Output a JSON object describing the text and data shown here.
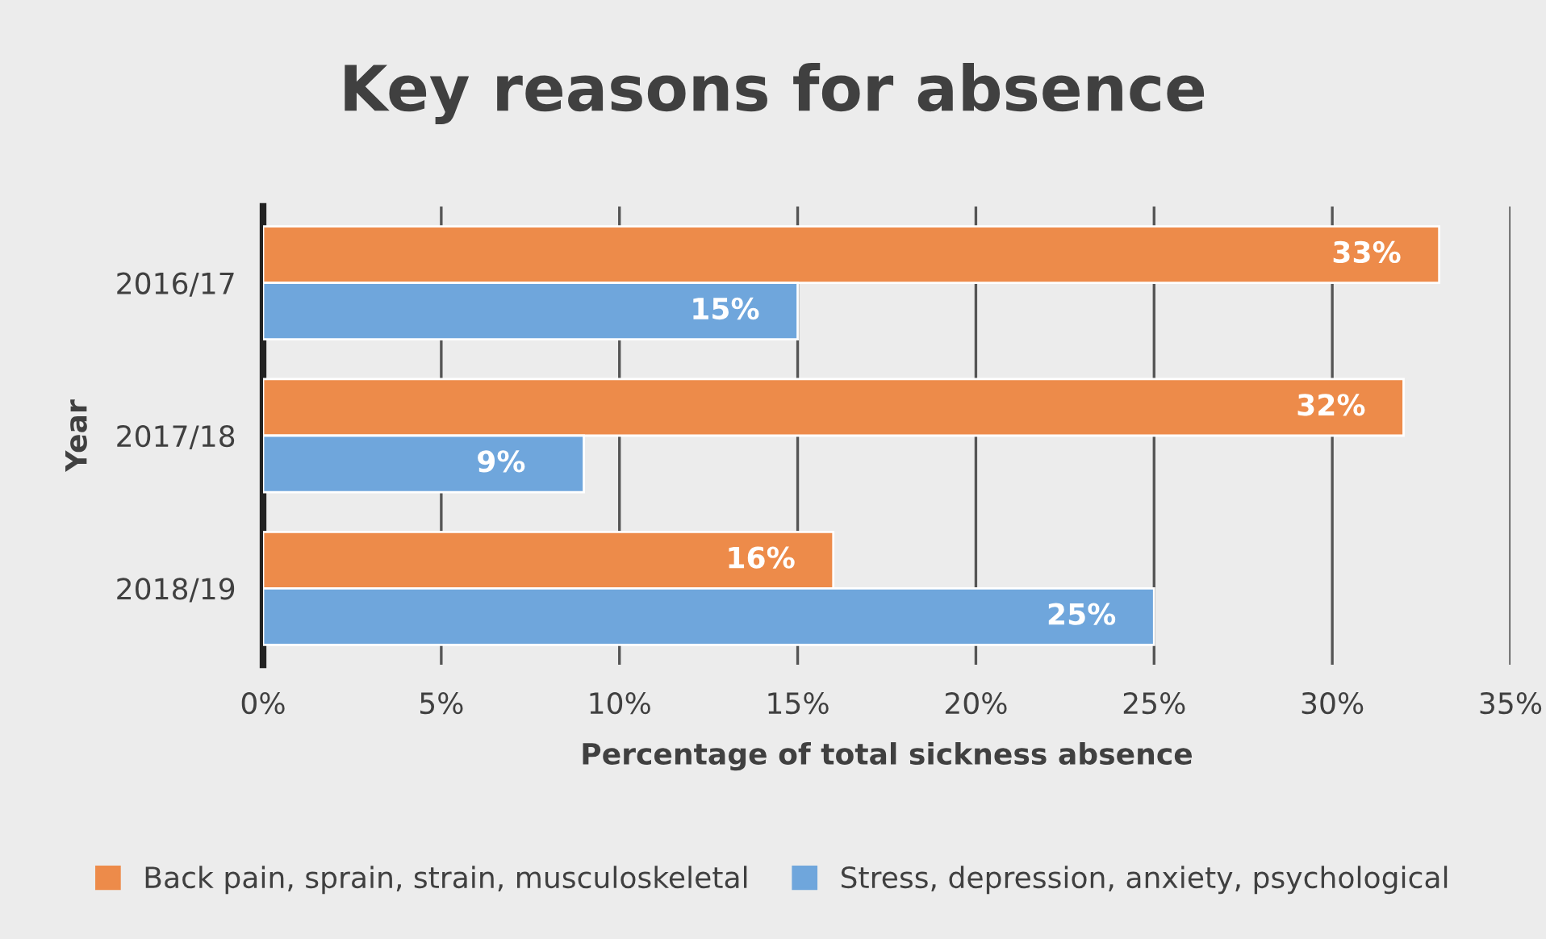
{
  "chart_data": {
    "type": "bar",
    "orientation": "horizontal",
    "title": "Key reasons for absence",
    "xlabel": "Percentage of total sickness absence",
    "ylabel": "Year",
    "categories": [
      "2016/17",
      "2017/18",
      "2018/19"
    ],
    "series": [
      {
        "name": "Back pain, sprain, strain, musculoskeletal",
        "color": "#ed8b4a",
        "values": [
          33,
          32,
          16
        ],
        "value_labels": [
          "33%",
          "32%",
          "16%"
        ]
      },
      {
        "name": "Stress, depression, anxiety, psychological",
        "color": "#6fa6dc",
        "values": [
          15,
          9,
          25
        ],
        "value_labels": [
          "15%",
          "9%",
          "25%"
        ]
      }
    ],
    "xlim": [
      0,
      35
    ],
    "xticks": [
      {
        "value": 0,
        "label": "0%"
      },
      {
        "value": 5,
        "label": "5%"
      },
      {
        "value": 10,
        "label": "10%"
      },
      {
        "value": 15,
        "label": "15%"
      },
      {
        "value": 20,
        "label": "20%"
      },
      {
        "value": 25,
        "label": "25%"
      },
      {
        "value": 30,
        "label": "30%"
      },
      {
        "value": 35,
        "label": "35%"
      }
    ],
    "grid": "x",
    "legend": "bottom"
  }
}
